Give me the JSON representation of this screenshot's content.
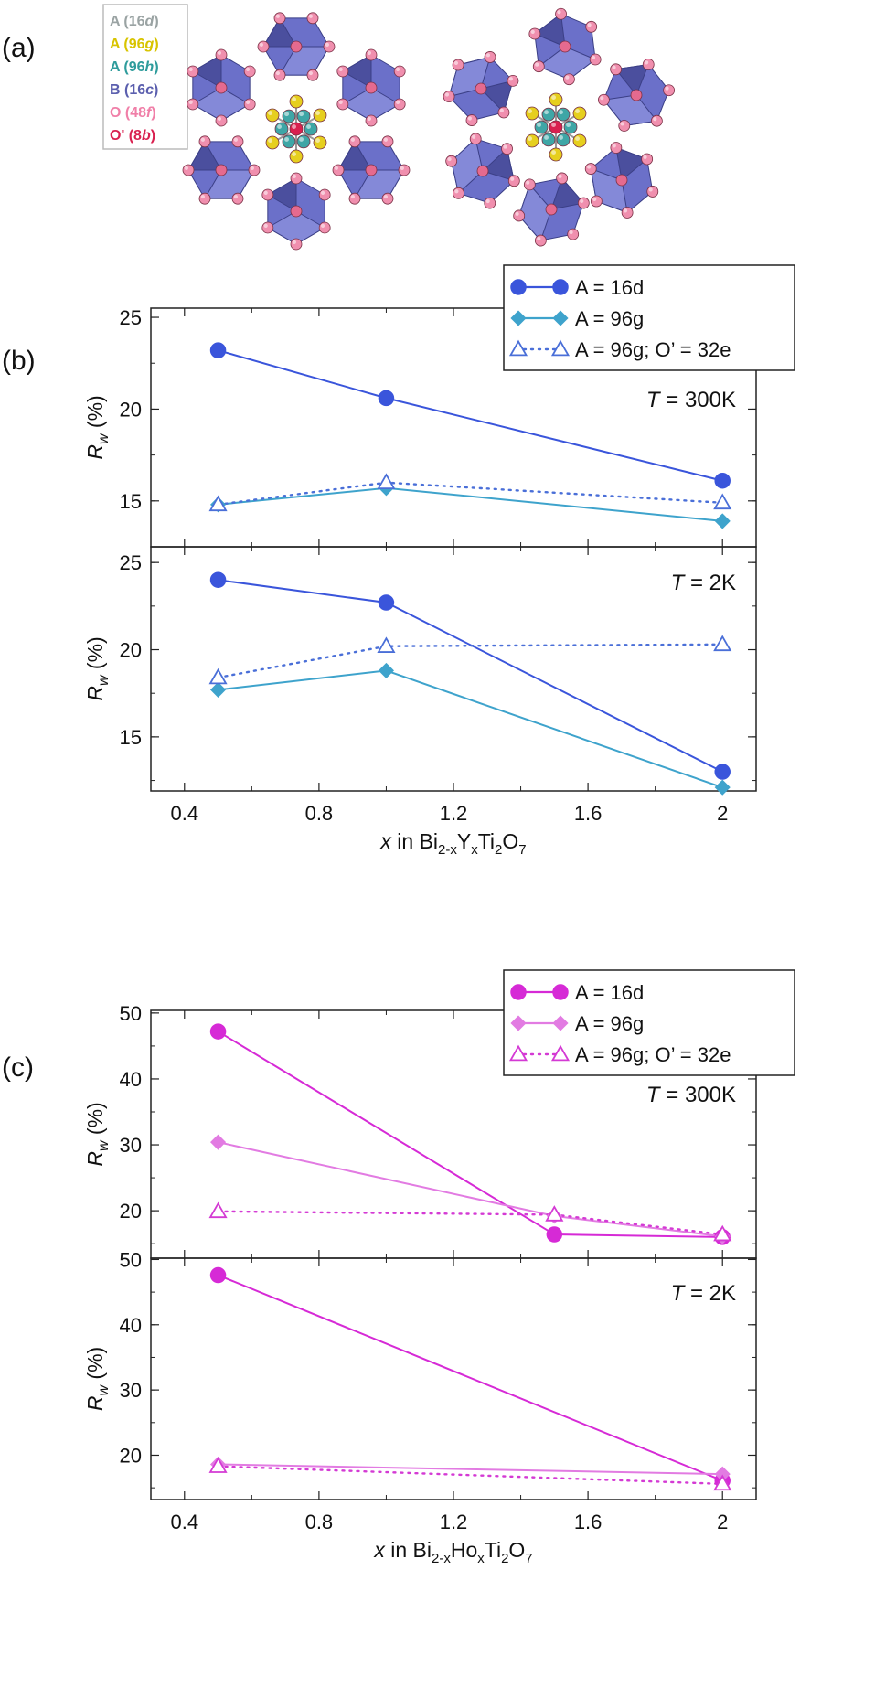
{
  "panel_labels": {
    "a": "(a)",
    "b": "(b)",
    "c": "(c)"
  },
  "structure_key": [
    {
      "site": "A",
      "wyckoff": "16d",
      "color": "#9aa3a3"
    },
    {
      "site": "A",
      "wyckoff": "96g",
      "color": "#d8c400"
    },
    {
      "site": "A",
      "wyckoff": "96h",
      "color": "#2f9c9c"
    },
    {
      "site": "B",
      "wyckoff": "16c",
      "color": "#5b5fae"
    },
    {
      "site": "O",
      "wyckoff": "48f",
      "color": "#f07fa8"
    },
    {
      "site": "O'",
      "wyckoff": "8b",
      "color": "#d9204f"
    }
  ],
  "chart_data": [
    {
      "id": "b",
      "type": "line",
      "xlabel": {
        "italic": "x",
        "rest": " in Bi",
        "sub1": "2-x",
        "mid": "Y",
        "sub2": "x",
        "mid2": "Ti",
        "sub3": "2",
        "mid3": "O",
        "sub4": "7"
      },
      "xlim": [
        0.3,
        2.1
      ],
      "xticks": [
        "0.4",
        "0.8",
        "1.2",
        "1.6",
        "2"
      ],
      "x": [
        0.5,
        1.0,
        2.0
      ],
      "legend": [
        "A = 16d",
        "A = 96g",
        "A = 96g; O’ = 32e"
      ],
      "colors": [
        "#3a55db",
        "#3ea3cc",
        "#4a6fd8"
      ],
      "panels": [
        {
          "temperature": "300K",
          "ylabel": "(%)",
          "ylim": [
            12.5,
            25.5
          ],
          "yticks": [
            "15",
            "20",
            "25"
          ],
          "series": [
            {
              "name": "A = 16d",
              "values": [
                23.2,
                20.6,
                16.1
              ]
            },
            {
              "name": "A = 96g",
              "values": [
                14.8,
                15.7,
                13.9
              ]
            },
            {
              "name": "A = 96g; O’ = 32e",
              "values": [
                14.8,
                16.0,
                14.9
              ]
            }
          ]
        },
        {
          "temperature": "2K",
          "ylabel": "(%)",
          "ylim": [
            11.9,
            25.9
          ],
          "yticks": [
            "15",
            "20",
            "25"
          ],
          "series": [
            {
              "name": "A = 16d",
              "values": [
                24.0,
                22.7,
                13.0
              ]
            },
            {
              "name": "A = 96g",
              "values": [
                17.7,
                18.8,
                12.1
              ]
            },
            {
              "name": "A = 96g; O’ = 32e",
              "values": [
                18.4,
                20.2,
                20.3
              ]
            }
          ]
        }
      ]
    },
    {
      "id": "c",
      "type": "line",
      "xlabel": {
        "italic": "x",
        "rest": " in Bi",
        "sub1": "2-x",
        "mid": "Ho",
        "sub2": "x",
        "mid2": "Ti",
        "sub3": "2",
        "mid3": "O",
        "sub4": "7"
      },
      "xlim": [
        0.3,
        2.1
      ],
      "xticks": [
        "0.4",
        "0.8",
        "1.2",
        "1.6",
        "2"
      ],
      "x": [
        0.5,
        1.5,
        2.0
      ],
      "legend": [
        "A = 16d",
        "A = 96g",
        "A = 96g; O’ = 32e"
      ],
      "colors": [
        "#d62ad6",
        "#e27be2",
        "#d43ad4"
      ],
      "panels": [
        {
          "temperature": "300K",
          "ylabel": "(%)",
          "ylim": [
            12.8,
            50.4
          ],
          "yticks": [
            "20",
            "30",
            "40",
            "50"
          ],
          "series": [
            {
              "name": "A = 16d",
              "values": [
                47.2,
                16.4,
                16.0
              ]
            },
            {
              "name": "A = 96g",
              "values": [
                30.4,
                19.2,
                16.1
              ]
            },
            {
              "name": "A = 96g; O’ = 32e",
              "values": [
                19.9,
                19.4,
                16.4
              ]
            }
          ]
        },
        {
          "temperature": "2K",
          "ylabel": "(%)",
          "ylim": [
            13.2,
            50.2
          ],
          "yticks": [
            "20",
            "30",
            "40",
            "50"
          ],
          "series": [
            {
              "name": "A = 16d",
              "values": [
                47.6,
                16.1
              ]
            },
            {
              "name": "A = 96g",
              "values": [
                18.6,
                17.1
              ]
            },
            {
              "name": "A = 96g; O’ = 32e",
              "values": [
                18.3,
                15.6
              ]
            }
          ],
          "x_override": [
            0.5,
            2.0
          ]
        }
      ]
    }
  ]
}
